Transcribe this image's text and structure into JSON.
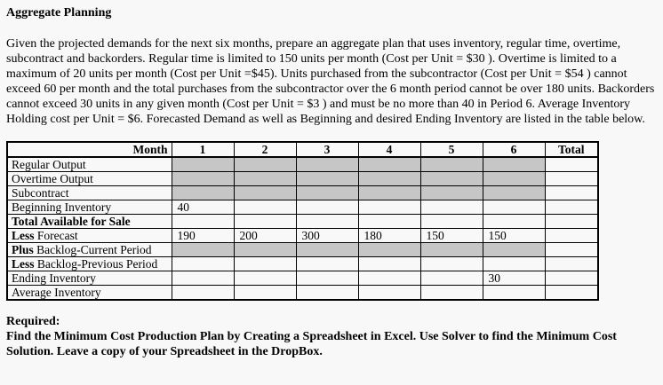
{
  "page": {
    "title": "Aggregate Planning",
    "intro": "Given the projected demands for the next six months, prepare an aggregate plan that uses inventory, regular time, overtime, subcontract and backorders. Regular time is limited to 150 units per month (Cost per Unit = $30 ). Overtime is limited to a maximum of 20 units per month (Cost per Unit =$45). Units purchased from the subcontractor (Cost per Unit = $54 ) cannot exceed 60 per month and the total purchases from the subcontractor over the 6 month period cannot be over 180 units. Backorders cannot exceed 30 units in any given month (Cost per Unit = $3 ) and must be no more than 40 in Period 6. Average Inventory Holding cost per Unit = $6. Forecasted Demand as well as Beginning and desired Ending Inventory are listed in the table below.",
    "required_label": "Required:",
    "required_text": "Find the Minimum Cost Production Plan by Creating a Spreadsheet in Excel. Use Solver to find the Minimum Cost Solution. Leave a copy of your Spreadsheet in the DropBox."
  },
  "table": {
    "corner_label": "Month",
    "columns": [
      "1",
      "2",
      "3",
      "4",
      "5",
      "6",
      "Total"
    ],
    "rows": [
      {
        "name": "regular-output",
        "label_bold": "",
        "label_rest": "Regular Output",
        "cells": [
          "",
          "",
          "",
          "",
          "",
          "",
          ""
        ],
        "shaded": [
          true,
          true,
          true,
          true,
          true,
          true,
          false
        ]
      },
      {
        "name": "overtime-output",
        "label_bold": "",
        "label_rest": "Overtime Output",
        "cells": [
          "",
          "",
          "",
          "",
          "",
          "",
          ""
        ],
        "shaded": [
          true,
          true,
          true,
          true,
          true,
          true,
          false
        ]
      },
      {
        "name": "subcontract",
        "label_bold": "",
        "label_rest": "Subcontract",
        "cells": [
          "",
          "",
          "",
          "",
          "",
          "",
          ""
        ],
        "shaded": [
          true,
          true,
          true,
          true,
          true,
          true,
          false
        ]
      },
      {
        "name": "beginning-inventory",
        "label_bold": "",
        "label_rest": "Beginning Inventory",
        "cells": [
          "40",
          "",
          "",
          "",
          "",
          "",
          ""
        ],
        "shaded": [
          false,
          false,
          false,
          false,
          false,
          false,
          false
        ]
      },
      {
        "name": "total-available-for-sale",
        "label_bold": "Total Available for Sale",
        "label_rest": "",
        "cells": [
          "",
          "",
          "",
          "",
          "",
          "",
          ""
        ],
        "shaded": [
          false,
          false,
          false,
          false,
          false,
          false,
          false
        ]
      },
      {
        "name": "less-forecast",
        "label_bold": "Less",
        "label_rest": " Forecast",
        "cells": [
          "190",
          "200",
          "300",
          "180",
          "150",
          "150",
          ""
        ],
        "shaded": [
          false,
          false,
          false,
          false,
          false,
          false,
          false
        ]
      },
      {
        "name": "plus-backlog-current-period",
        "label_bold": "Plus",
        "label_rest": " Backlog-Current Period",
        "cells": [
          "",
          "",
          "",
          "",
          "",
          "",
          ""
        ],
        "shaded": [
          true,
          true,
          true,
          true,
          true,
          true,
          false
        ]
      },
      {
        "name": "less-backlog-previous-period",
        "label_bold": "Less",
        "label_rest": " Backlog-Previous Period",
        "cells": [
          "",
          "",
          "",
          "",
          "",
          "",
          ""
        ],
        "shaded": [
          false,
          false,
          false,
          false,
          false,
          false,
          false
        ]
      },
      {
        "name": "ending-inventory",
        "label_bold": "",
        "label_rest": "Ending Inventory",
        "cells": [
          "",
          "",
          "",
          "",
          "",
          "30",
          ""
        ],
        "shaded": [
          false,
          false,
          false,
          false,
          false,
          false,
          false
        ]
      },
      {
        "name": "average-inventory",
        "label_bold": "",
        "label_rest": "Average Inventory",
        "cells": [
          "",
          "",
          "",
          "",
          "",
          "",
          ""
        ],
        "shaded": [
          false,
          false,
          false,
          false,
          false,
          false,
          false
        ]
      }
    ]
  },
  "colors": {
    "page_background": "#f8f8f8",
    "shaded_cell": "#c6c6c6",
    "border": "#000000",
    "text": "#000000"
  }
}
